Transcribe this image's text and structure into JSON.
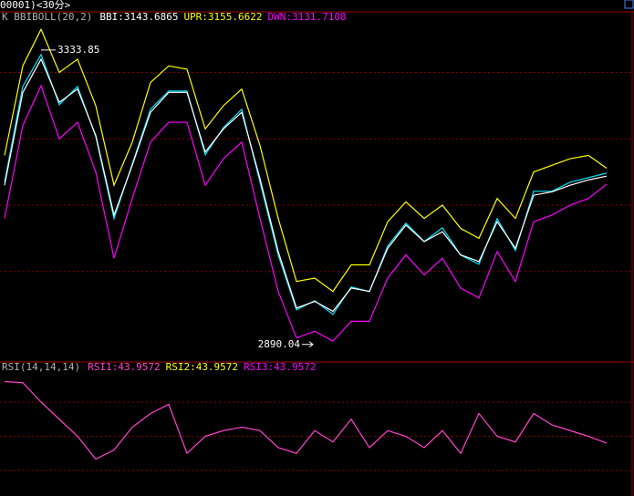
{
  "window_title": "00001)<30分>",
  "chart_data": [
    {
      "type": "line",
      "title": "K  BBIBOLL(20,2)",
      "ylim": [
        2865,
        3390
      ],
      "gridlines": [
        3000,
        3100,
        3200,
        3300
      ],
      "series": [
        {
          "color": "#00e5ff",
          "values": [
            3134.6,
            3278.9,
            3327.0,
            3251.4,
            3278.9,
            3203.3,
            3079.7,
            3162.1,
            3244.5,
            3272.0,
            3272.0,
            3175.8,
            3217.0,
            3244.5,
            3134.6,
            3024.7,
            2942.2,
            2956.0,
            2935.4,
            2976.6,
            2969.8,
            3038.4,
            3072.8,
            3045.3,
            3065.9,
            3024.7,
            3011.0,
            3079.7,
            3031.6,
            3120.9,
            3120.9,
            3134.6,
            3141.5,
            3148.3
          ]
        },
        {
          "name": "BBI:3143.6865",
          "color": "#ffffff",
          "values": [
            3130,
            3270,
            3320,
            3255,
            3275,
            3205,
            3085,
            3160,
            3240,
            3270,
            3270,
            3180,
            3215,
            3240,
            3140,
            3030,
            2945,
            2955,
            2940,
            2975,
            2970,
            3035,
            3070,
            3045,
            3060,
            3025,
            3015,
            3075,
            3035,
            3115,
            3120,
            3130,
            3138,
            3143.69
          ]
        },
        {
          "name": "UPR:3155.6622",
          "color": "#ffff00",
          "values": [
            3175,
            3310,
            3365,
            3300,
            3320,
            3250,
            3130,
            3195,
            3285,
            3310,
            3305,
            3215,
            3250,
            3275,
            3190,
            3080,
            2985,
            2990,
            2970,
            3010,
            3010,
            3075,
            3105,
            3080,
            3100,
            3065,
            3050,
            3110,
            3080,
            3150,
            3160,
            3170,
            3175,
            3155.66
          ]
        },
        {
          "name": "DWN:3131.7108",
          "color": "#ff00ff",
          "values": [
            3080,
            3220,
            3280,
            3200,
            3225,
            3150,
            3020,
            3110,
            3195,
            3225,
            3225,
            3130,
            3170,
            3195,
            3080,
            2970,
            2900,
            2910,
            2895,
            2925,
            2925,
            2990,
            3025,
            2995,
            3020,
            2975,
            2960,
            3030,
            2985,
            3075,
            3085,
            3100,
            3110,
            3131.71
          ]
        }
      ],
      "annotations": [
        {
          "value": 3333.85,
          "index": 2
        },
        {
          "value": 2890.04,
          "index": 17
        }
      ]
    },
    {
      "type": "line",
      "title": "RSI(14,14,14)",
      "ylim": [
        -2.4,
        114.4
      ],
      "gridlines": [
        20,
        50,
        80
      ],
      "series": [
        {
          "name": "RSI1:43.9572",
          "color": "#ff44cc",
          "values": [
            98,
            97,
            80,
            65,
            50,
            30,
            38,
            58,
            70,
            78,
            35,
            50,
            55,
            58,
            55,
            40,
            35,
            55,
            45,
            65,
            40,
            55,
            50,
            40,
            55,
            35,
            70,
            50,
            45,
            70,
            60,
            55,
            50,
            43.9572
          ]
        }
      ],
      "legend_extra": [
        {
          "text": "RSI2:43.9572",
          "color": "#ffff00"
        },
        {
          "text": "RSI3:43.9572",
          "color": "#ff00ff"
        }
      ]
    }
  ]
}
